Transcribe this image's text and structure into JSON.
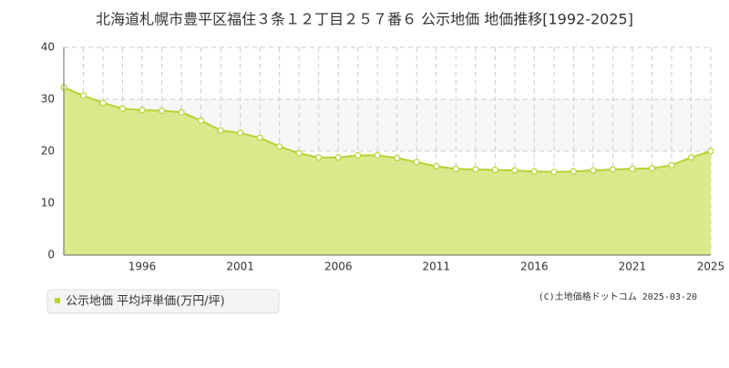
{
  "chart_data": {
    "type": "area",
    "title": "北海道札幌市豊平区福住３条１２丁目２５７番６ 公示地価 地価推移[1992-2025]",
    "x": [
      1992,
      1993,
      1994,
      1995,
      1996,
      1997,
      1998,
      1999,
      2000,
      2001,
      2002,
      2003,
      2004,
      2005,
      2006,
      2007,
      2008,
      2009,
      2010,
      2011,
      2012,
      2013,
      2014,
      2015,
      2016,
      2017,
      2018,
      2019,
      2020,
      2021,
      2022,
      2023,
      2024,
      2025
    ],
    "series": [
      {
        "name": "公示地価 平均坪単価(万円/坪)",
        "color": "#b5d334",
        "values": [
          32.3,
          30.7,
          29.3,
          28.2,
          27.9,
          27.8,
          27.5,
          25.9,
          24.0,
          23.5,
          22.6,
          20.9,
          19.6,
          18.8,
          18.8,
          19.2,
          19.2,
          18.7,
          17.9,
          17.1,
          16.6,
          16.5,
          16.4,
          16.3,
          16.1,
          16.0,
          16.1,
          16.3,
          16.5,
          16.6,
          16.7,
          17.3,
          18.8,
          20.0
        ]
      }
    ],
    "xlim": [
      1992,
      2025
    ],
    "xticks": [
      1996,
      2001,
      2006,
      2011,
      2016,
      2021,
      2025
    ],
    "ylim": [
      0,
      40
    ],
    "yticks": [
      0,
      10,
      20,
      30,
      40
    ],
    "grid": true,
    "source": "(C)土地価格ドットコム 2025-03-20"
  }
}
